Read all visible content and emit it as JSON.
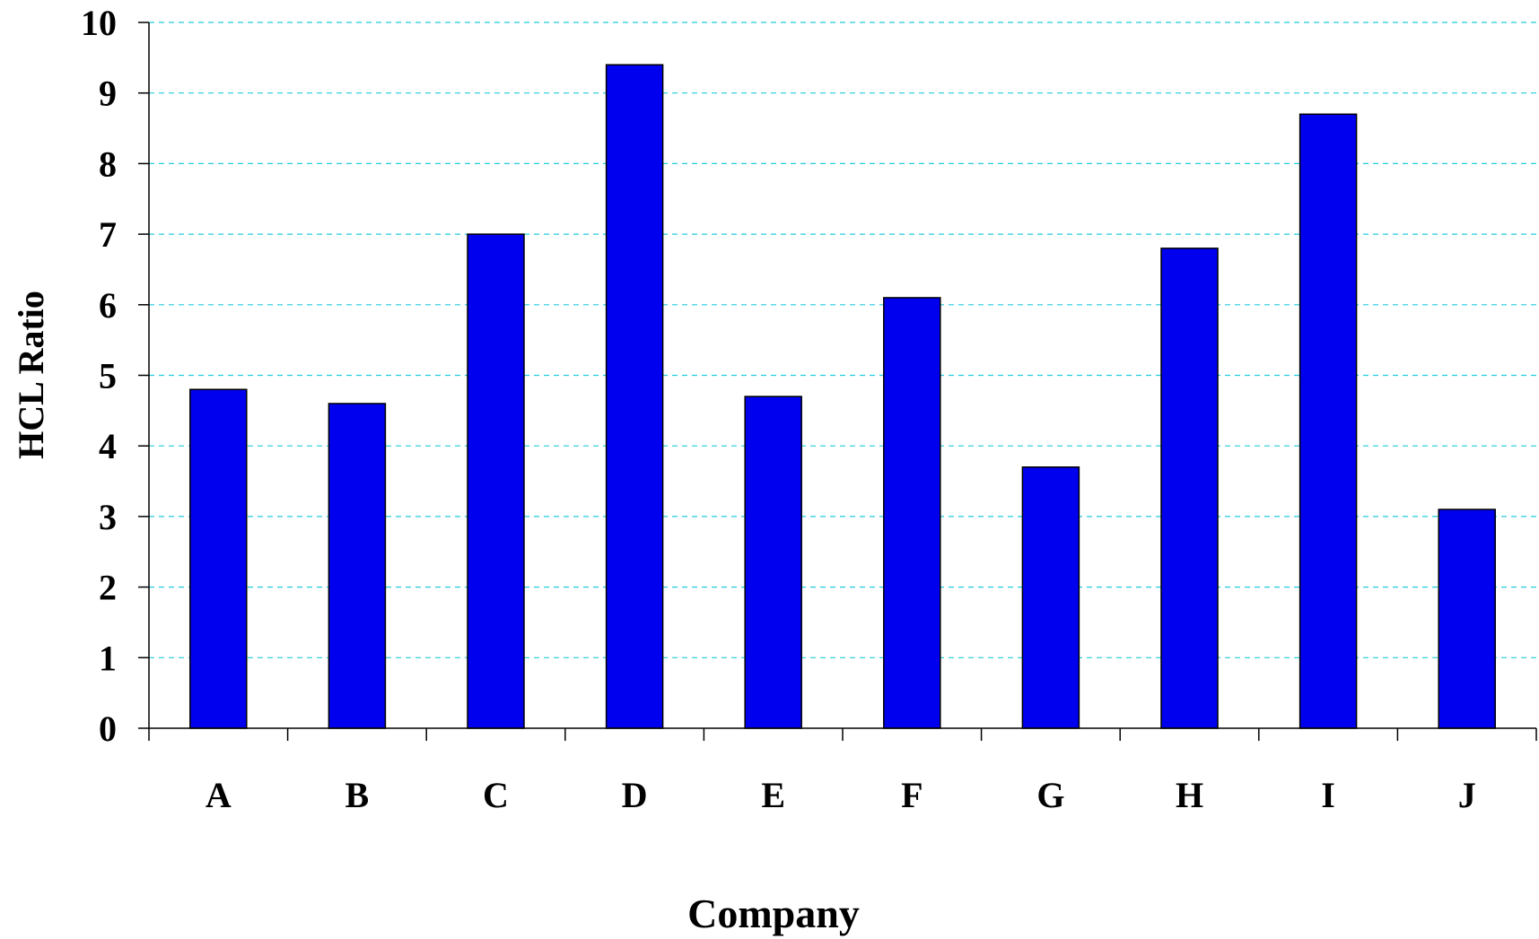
{
  "chart_data": {
    "type": "bar",
    "categories": [
      "A",
      "B",
      "C",
      "D",
      "E",
      "F",
      "G",
      "H",
      "I",
      "J"
    ],
    "values": [
      4.8,
      4.6,
      7.0,
      9.4,
      4.7,
      6.1,
      3.7,
      6.8,
      8.7,
      3.1
    ],
    "xlabel": "Company",
    "ylabel": "HCL Ratio",
    "ylim": [
      0,
      10
    ],
    "yticks": [
      0,
      1,
      2,
      3,
      4,
      5,
      6,
      7,
      8,
      9,
      10
    ],
    "grid": true,
    "legend": "none",
    "colors": {
      "bar": "#0000ee",
      "grid": "#22ccdd",
      "axis": "#000000"
    }
  }
}
